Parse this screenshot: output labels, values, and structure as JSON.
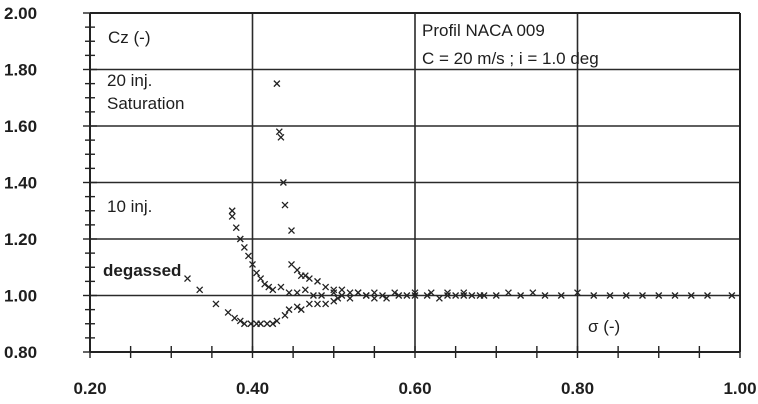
{
  "chart_data": {
    "type": "scatter",
    "title": "",
    "xlabel": "σ (-)",
    "ylabel": "Cz (-)",
    "xlim": [
      0.2,
      1.0
    ],
    "ylim": [
      0.8,
      2.0
    ],
    "grid": true,
    "x_ticks": [
      "0.20",
      "0.40",
      "0.60",
      "0.80",
      "1.00"
    ],
    "y_ticks": [
      "0.80",
      "1.00",
      "1.20",
      "1.40",
      "1.60",
      "1.80",
      "2.00"
    ],
    "annotations": {
      "profile": "Profil NACA 009",
      "conditions": "C = 20 m/s  ;  i = 1.0 deg",
      "inj20_line1": "20 inj.",
      "inj20_line2": "Saturation",
      "inj10": "10 inj.",
      "degassed": "degassed"
    },
    "series": [
      {
        "marker": "x",
        "points": [
          [
            0.32,
            1.06
          ],
          [
            0.335,
            1.02
          ],
          [
            0.355,
            0.97
          ],
          [
            0.37,
            0.94
          ],
          [
            0.378,
            0.92
          ],
          [
            0.385,
            0.91
          ],
          [
            0.39,
            0.9
          ],
          [
            0.398,
            0.9
          ],
          [
            0.405,
            0.9
          ],
          [
            0.41,
            0.9
          ],
          [
            0.418,
            0.9
          ],
          [
            0.425,
            0.9
          ],
          [
            0.43,
            0.91
          ],
          [
            0.44,
            0.93
          ],
          [
            0.445,
            0.95
          ],
          [
            0.455,
            0.96
          ],
          [
            0.46,
            0.95
          ],
          [
            0.47,
            0.97
          ],
          [
            0.48,
            0.97
          ],
          [
            0.49,
            0.97
          ],
          [
            0.5,
            0.98
          ],
          [
            0.505,
            0.99
          ],
          [
            0.51,
            1.0
          ],
          [
            0.52,
            0.99
          ],
          [
            0.53,
            1.01
          ],
          [
            0.54,
            1.0
          ],
          [
            0.55,
            0.99
          ],
          [
            0.56,
            1.0
          ],
          [
            0.565,
            0.99
          ],
          [
            0.575,
            1.01
          ],
          [
            0.59,
            1.0
          ],
          [
            0.6,
            1.01
          ],
          [
            0.615,
            1.0
          ],
          [
            0.63,
            0.99
          ],
          [
            0.64,
            1.01
          ],
          [
            0.65,
            1.0
          ],
          [
            0.66,
            1.01
          ],
          [
            0.67,
            1.0
          ],
          [
            0.685,
            1.0
          ],
          [
            0.7,
            1.0
          ],
          [
            0.715,
            1.01
          ],
          [
            0.73,
            1.0
          ],
          [
            0.745,
            1.01
          ],
          [
            0.76,
            1.0
          ],
          [
            0.78,
            1.0
          ],
          [
            0.8,
            1.01
          ],
          [
            0.82,
            1.0
          ],
          [
            0.84,
            1.0
          ],
          [
            0.86,
            1.0
          ],
          [
            0.88,
            1.0
          ],
          [
            0.9,
            1.0
          ],
          [
            0.92,
            1.0
          ],
          [
            0.94,
            1.0
          ],
          [
            0.96,
            1.0
          ],
          [
            0.99,
            1.0
          ],
          [
            0.375,
            1.3
          ],
          [
            0.375,
            1.28
          ],
          [
            0.38,
            1.24
          ],
          [
            0.385,
            1.2
          ],
          [
            0.39,
            1.17
          ],
          [
            0.395,
            1.14
          ],
          [
            0.4,
            1.11
          ],
          [
            0.405,
            1.08
          ],
          [
            0.41,
            1.06
          ],
          [
            0.415,
            1.04
          ],
          [
            0.42,
            1.03
          ],
          [
            0.425,
            1.02
          ],
          [
            0.435,
            1.03
          ],
          [
            0.445,
            1.01
          ],
          [
            0.455,
            1.01
          ],
          [
            0.465,
            1.02
          ],
          [
            0.475,
            1.0
          ],
          [
            0.485,
            1.0
          ],
          [
            0.5,
            1.01
          ],
          [
            0.52,
            1.01
          ],
          [
            0.54,
            1.0
          ],
          [
            0.58,
            1.0
          ],
          [
            0.62,
            1.01
          ],
          [
            0.66,
            1.0
          ],
          [
            0.43,
            1.75
          ],
          [
            0.433,
            1.58
          ],
          [
            0.435,
            1.56
          ],
          [
            0.438,
            1.4
          ],
          [
            0.44,
            1.32
          ],
          [
            0.448,
            1.23
          ],
          [
            0.448,
            1.11
          ],
          [
            0.455,
            1.09
          ],
          [
            0.46,
            1.07
          ],
          [
            0.465,
            1.07
          ],
          [
            0.47,
            1.06
          ],
          [
            0.48,
            1.05
          ],
          [
            0.49,
            1.03
          ],
          [
            0.5,
            1.02
          ],
          [
            0.51,
            1.02
          ],
          [
            0.53,
            1.01
          ],
          [
            0.55,
            1.01
          ],
          [
            0.6,
            1.0
          ],
          [
            0.64,
            1.0
          ],
          [
            0.68,
            1.0
          ]
        ]
      }
    ]
  }
}
